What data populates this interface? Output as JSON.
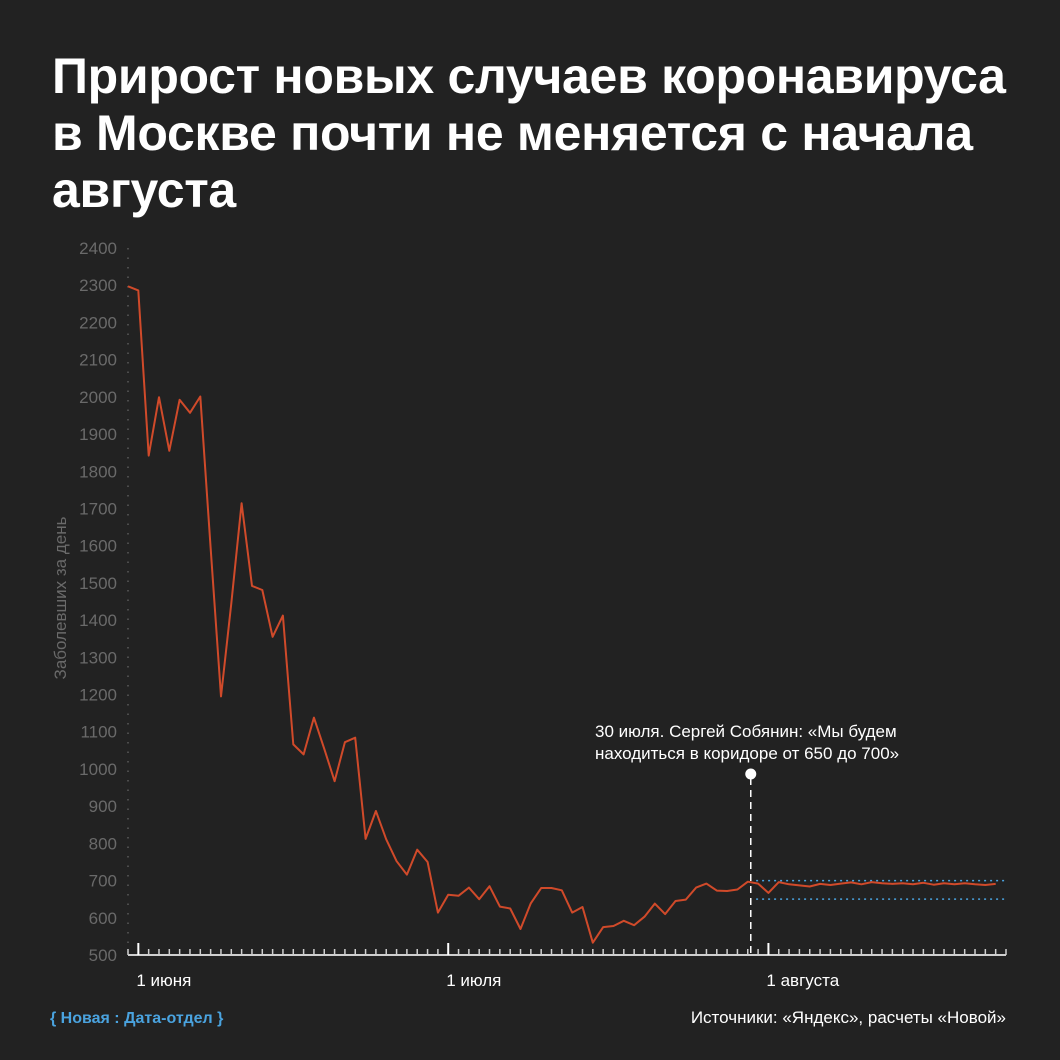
{
  "title": "Прирост новых случаев коронавируса в Москве почти не меняется с начала августа",
  "footer": {
    "brand": "{ Новая : Дата-отдел }",
    "source": "Источники: «Яндекс», расчеты «Новой»"
  },
  "colors": {
    "background": "#222222",
    "line": "#d04a2a",
    "corridor": "#4aa3df",
    "brand": "#4aa3df"
  },
  "chart_data": {
    "type": "line",
    "title": "Прирост новых случаев коронавируса в Москве почти не меняется с начала августа",
    "xlabel": "",
    "ylabel": "Заболевших за день",
    "ylim": [
      500,
      2400
    ],
    "yticks": [
      500,
      600,
      700,
      800,
      900,
      1000,
      1100,
      1200,
      1300,
      1400,
      1500,
      1600,
      1700,
      1800,
      1900,
      2000,
      2100,
      2200,
      2300,
      2400
    ],
    "xrange": [
      "2020-05-31",
      "2020-08-24"
    ],
    "xtick_labels": [
      {
        "date": "2020-06-01",
        "label": "1 июня"
      },
      {
        "date": "2020-07-01",
        "label": "1 июля"
      },
      {
        "date": "2020-08-01",
        "label": "1 августа"
      }
    ],
    "grid": false,
    "series": [
      {
        "start_date": "2020-05-31",
        "values": [
          2297,
          2286,
          1842,
          1999,
          1855,
          1992,
          1957,
          2001,
          1595,
          1195,
          1445,
          1714,
          1492,
          1481,
          1355,
          1412,
          1066,
          1039,
          1138,
          1054,
          967,
          1072,
          1084,
          812,
          887,
          811,
          752,
          716,
          783,
          750,
          614,
          662,
          659,
          681,
          650,
          685,
          630,
          625,
          570,
          639,
          680,
          680,
          674,
          614,
          629,
          533,
          575,
          578,
          592,
          580,
          603,
          638,
          610,
          645,
          649,
          681,
          692,
          673,
          672,
          676,
          697,
          692,
          667,
          696,
          690,
          687,
          684,
          691,
          688,
          692,
          695,
          690,
          696,
          693,
          691,
          693,
          690,
          694,
          689,
          693,
          690,
          693,
          690,
          688,
          691
        ]
      }
    ],
    "annotation": {
      "date": "2020-07-30",
      "text_line1": "30 июля. Сергей Собянин: «Мы будем",
      "text_line2": "находиться в коридоре от 650 до 700»"
    },
    "corridor": {
      "from_date": "2020-07-31",
      "low": 650,
      "high": 700
    }
  }
}
